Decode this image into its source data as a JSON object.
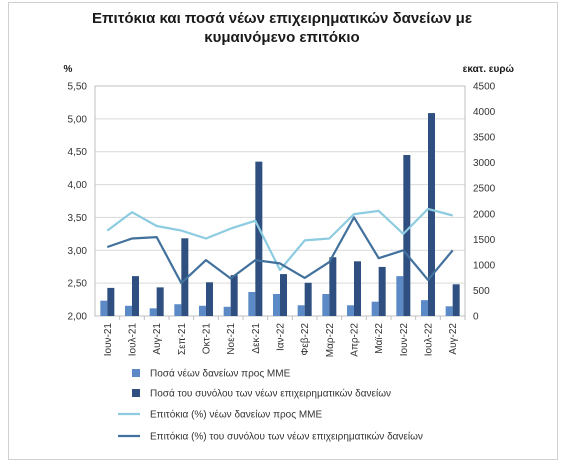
{
  "chart_data": {
    "type": "bar",
    "title_lines": [
      "Επιτόκια και ποσά νέων επιχειρηματικών δανείων με",
      "κυμαινόμενο επιτόκιο"
    ],
    "left_axis_unit": "%",
    "right_axis_unit": "εκατ. ευρώ",
    "left_ticks": [
      "2,00",
      "2,50",
      "3,00",
      "3,50",
      "4,00",
      "4,50",
      "5,00",
      "5,50"
    ],
    "right_ticks": [
      "0",
      "500",
      "1000",
      "1500",
      "2000",
      "2500",
      "3000",
      "3500",
      "4000",
      "4500"
    ],
    "ylim_left": [
      2.0,
      5.5
    ],
    "ylim_right": [
      0,
      4500
    ],
    "categories": [
      "Ιουν-21",
      "Ιουλ-21",
      "Αυγ-21",
      "Σεπ-21",
      "Οκτ-21",
      "Νοε-21",
      "Δεκ-21",
      "Ιαν-22",
      "Φεβ-22",
      "Μαρ-22",
      "Απρ-22",
      "Μαϊ-22",
      "Ιουν-22",
      "Ιουλ-22",
      "Αυγ-22"
    ],
    "series": [
      {
        "name": "Ποσά νέων δανείων προς ΜΜΕ",
        "kind": "bar",
        "axis": "right",
        "color": "#5b8ac6",
        "values": [
          300,
          200,
          150,
          230,
          200,
          180,
          470,
          430,
          210,
          430,
          210,
          280,
          780,
          310,
          190
        ]
      },
      {
        "name": "Ποσά του συνόλου των νέων επιχειρηματικών δανείων",
        "kind": "bar",
        "axis": "right",
        "color": "#2e4f7f",
        "values": [
          550,
          780,
          560,
          1520,
          660,
          800,
          3020,
          820,
          650,
          1150,
          1070,
          960,
          3150,
          3970,
          620
        ]
      },
      {
        "name": "Επιτόκια (%) νέων δανείων προς ΜΜΕ",
        "kind": "line",
        "axis": "left",
        "color": "#8ccbe0",
        "values": [
          3.3,
          3.58,
          3.37,
          3.3,
          3.18,
          3.33,
          3.45,
          2.7,
          3.15,
          3.18,
          3.55,
          3.6,
          3.25,
          3.63,
          3.53
        ]
      },
      {
        "name": "Επιτόκια (%) του συνόλου των νέων επιχειρηματικών δανείων",
        "kind": "line",
        "axis": "left",
        "color": "#41719c",
        "values": [
          3.05,
          3.18,
          3.2,
          2.5,
          2.85,
          2.57,
          2.85,
          2.8,
          2.58,
          2.82,
          3.5,
          2.88,
          3.0,
          2.55,
          3.0
        ]
      }
    ],
    "grid": true,
    "legend_position": "bottom"
  }
}
